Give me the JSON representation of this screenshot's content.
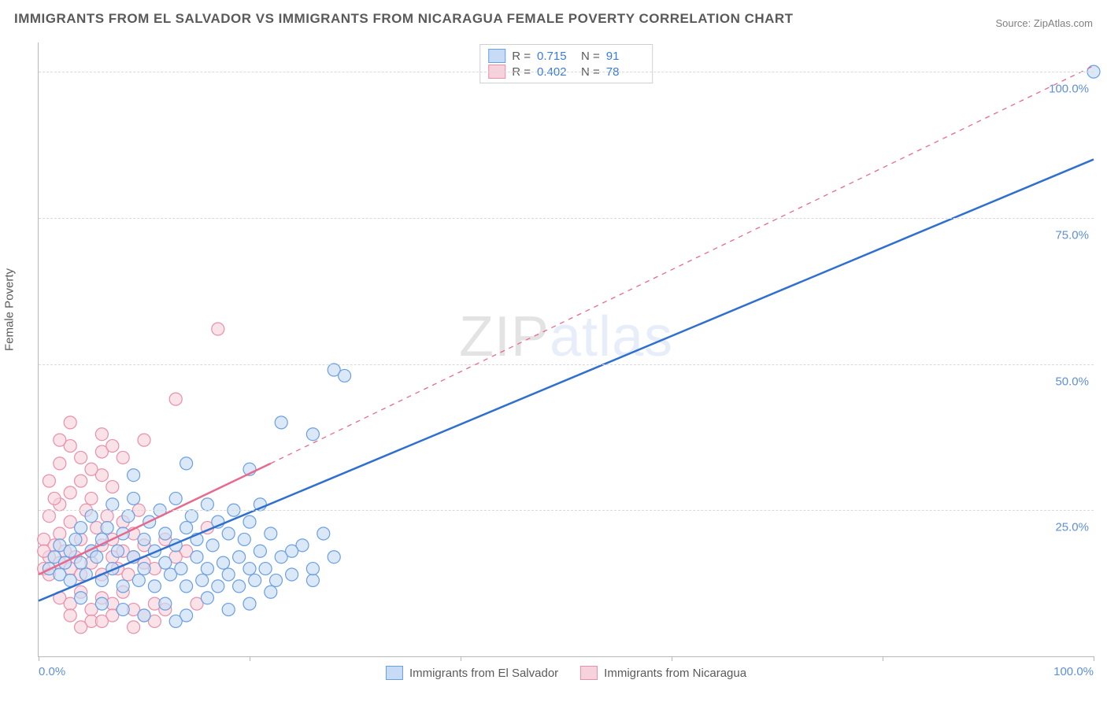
{
  "title": "IMMIGRANTS FROM EL SALVADOR VS IMMIGRANTS FROM NICARAGUA FEMALE POVERTY CORRELATION CHART",
  "source": "Source: ZipAtlas.com",
  "y_axis_label": "Female Poverty",
  "watermark": {
    "prefix": "ZIP",
    "suffix": "atlas"
  },
  "chart": {
    "type": "scatter",
    "xlim": [
      0,
      100
    ],
    "ylim": [
      0,
      105
    ],
    "y_ticks": [
      25,
      50,
      75,
      100
    ],
    "y_tick_labels": [
      "25.0%",
      "50.0%",
      "75.0%",
      "100.0%"
    ],
    "x_ticks": [
      0,
      20,
      40,
      60,
      80,
      100
    ],
    "x_tick_labels_shown": {
      "0": "0.0%",
      "100": "100.0%"
    },
    "background_color": "#ffffff",
    "grid_color": "#d9d9d9",
    "tick_label_color": "#5f8fd8",
    "axis_color": "#b8b8b8",
    "marker_radius": 8,
    "marker_stroke_width": 1.2,
    "trend_line_width": 2.5,
    "series": [
      {
        "id": "el_salvador",
        "label": "Immigrants from El Salvador",
        "R": "0.715",
        "N": "91",
        "fill": "#c8dbf4",
        "stroke": "#6a9fe0",
        "trend_color": "#2f6fd0",
        "trend": {
          "x1": 0,
          "y1": 9.5,
          "x2": 100,
          "y2": 85
        },
        "points": [
          [
            1,
            15
          ],
          [
            1.5,
            17
          ],
          [
            2,
            14
          ],
          [
            2,
            19
          ],
          [
            2.5,
            16
          ],
          [
            3,
            18
          ],
          [
            3,
            13
          ],
          [
            3.5,
            20
          ],
          [
            4,
            16
          ],
          [
            4,
            22
          ],
          [
            4.5,
            14
          ],
          [
            5,
            18
          ],
          [
            5,
            24
          ],
          [
            5.5,
            17
          ],
          [
            6,
            20
          ],
          [
            6,
            13
          ],
          [
            6.5,
            22
          ],
          [
            7,
            15
          ],
          [
            7,
            26
          ],
          [
            7.5,
            18
          ],
          [
            8,
            21
          ],
          [
            8,
            12
          ],
          [
            8.5,
            24
          ],
          [
            9,
            17
          ],
          [
            9,
            27
          ],
          [
            9.5,
            13
          ],
          [
            10,
            20
          ],
          [
            10,
            15
          ],
          [
            10.5,
            23
          ],
          [
            11,
            18
          ],
          [
            11,
            12
          ],
          [
            11.5,
            25
          ],
          [
            12,
            16
          ],
          [
            12,
            21
          ],
          [
            12.5,
            14
          ],
          [
            13,
            19
          ],
          [
            13,
            27
          ],
          [
            13.5,
            15
          ],
          [
            14,
            22
          ],
          [
            14,
            12
          ],
          [
            14.5,
            24
          ],
          [
            15,
            17
          ],
          [
            15,
            20
          ],
          [
            15.5,
            13
          ],
          [
            16,
            26
          ],
          [
            16,
            15
          ],
          [
            16.5,
            19
          ],
          [
            17,
            12
          ],
          [
            17,
            23
          ],
          [
            17.5,
            16
          ],
          [
            18,
            21
          ],
          [
            18,
            14
          ],
          [
            18.5,
            25
          ],
          [
            19,
            17
          ],
          [
            19,
            12
          ],
          [
            19.5,
            20
          ],
          [
            20,
            15
          ],
          [
            20,
            23
          ],
          [
            20.5,
            13
          ],
          [
            21,
            18
          ],
          [
            21,
            26
          ],
          [
            21.5,
            15
          ],
          [
            22,
            21
          ],
          [
            22.5,
            13
          ],
          [
            23,
            17
          ],
          [
            24,
            14
          ],
          [
            25,
            19
          ],
          [
            26,
            13
          ],
          [
            27,
            21
          ],
          [
            8,
            8
          ],
          [
            10,
            7
          ],
          [
            12,
            9
          ],
          [
            14,
            7
          ],
          [
            16,
            10
          ],
          [
            18,
            8
          ],
          [
            13,
            6
          ],
          [
            20,
            9
          ],
          [
            6,
            9
          ],
          [
            4,
            10
          ],
          [
            9,
            31
          ],
          [
            14,
            33
          ],
          [
            20,
            32
          ],
          [
            23,
            40
          ],
          [
            26,
            38
          ],
          [
            28,
            49
          ],
          [
            29,
            48
          ],
          [
            24,
            18
          ],
          [
            26,
            15
          ],
          [
            28,
            17
          ],
          [
            22,
            11
          ],
          [
            100,
            100
          ]
        ]
      },
      {
        "id": "nicaragua",
        "label": "Immigrants from Nicaragua",
        "R": "0.402",
        "N": "78",
        "fill": "#f6d2dc",
        "stroke": "#e98fa9",
        "trend_color": "#e76a8e",
        "trend_solid": {
          "x1": 0,
          "y1": 14,
          "x2": 22,
          "y2": 33
        },
        "trend_dash": {
          "x1": 22,
          "y1": 33,
          "x2": 100,
          "y2": 101
        },
        "points": [
          [
            0.5,
            15
          ],
          [
            1,
            17
          ],
          [
            1,
            14
          ],
          [
            1.5,
            19
          ],
          [
            2,
            16
          ],
          [
            2,
            21
          ],
          [
            2.5,
            18
          ],
          [
            3,
            15
          ],
          [
            3,
            23
          ],
          [
            3.5,
            17
          ],
          [
            4,
            20
          ],
          [
            4,
            14
          ],
          [
            4.5,
            25
          ],
          [
            5,
            18
          ],
          [
            5,
            16
          ],
          [
            5.5,
            22
          ],
          [
            6,
            19
          ],
          [
            6,
            14
          ],
          [
            6.5,
            24
          ],
          [
            7,
            17
          ],
          [
            7,
            20
          ],
          [
            7.5,
            15
          ],
          [
            8,
            23
          ],
          [
            8,
            18
          ],
          [
            8.5,
            14
          ],
          [
            9,
            21
          ],
          [
            9,
            17
          ],
          [
            9.5,
            25
          ],
          [
            10,
            16
          ],
          [
            10,
            19
          ],
          [
            3,
            28
          ],
          [
            4,
            30
          ],
          [
            5,
            27
          ],
          [
            6,
            31
          ],
          [
            2,
            26
          ],
          [
            7,
            29
          ],
          [
            4,
            34
          ],
          [
            5,
            32
          ],
          [
            3,
            36
          ],
          [
            6,
            35
          ],
          [
            2,
            10
          ],
          [
            3,
            9
          ],
          [
            4,
            11
          ],
          [
            5,
            8
          ],
          [
            6,
            10
          ],
          [
            7,
            9
          ],
          [
            8,
            11
          ],
          [
            3,
            7
          ],
          [
            5,
            6
          ],
          [
            7,
            7
          ],
          [
            9,
            8
          ],
          [
            10,
            7
          ],
          [
            11,
            9
          ],
          [
            12,
            8
          ],
          [
            4,
            5
          ],
          [
            6,
            6
          ],
          [
            15,
            9
          ],
          [
            13,
            44
          ],
          [
            10,
            37
          ],
          [
            12,
            20
          ],
          [
            14,
            18
          ],
          [
            16,
            22
          ],
          [
            11,
            15
          ],
          [
            13,
            17
          ],
          [
            1,
            30
          ],
          [
            2,
            33
          ],
          [
            0.5,
            20
          ],
          [
            1,
            24
          ],
          [
            0.5,
            18
          ],
          [
            1.5,
            27
          ],
          [
            17,
            56
          ],
          [
            6,
            38
          ],
          [
            7,
            36
          ],
          [
            8,
            34
          ],
          [
            2,
            37
          ],
          [
            3,
            40
          ],
          [
            9,
            5
          ],
          [
            11,
            6
          ]
        ]
      }
    ]
  },
  "stats_legend_labels": {
    "R": "R =",
    "N": "N ="
  },
  "bottom_legend": [
    {
      "series": "el_salvador"
    },
    {
      "series": "nicaragua"
    }
  ]
}
